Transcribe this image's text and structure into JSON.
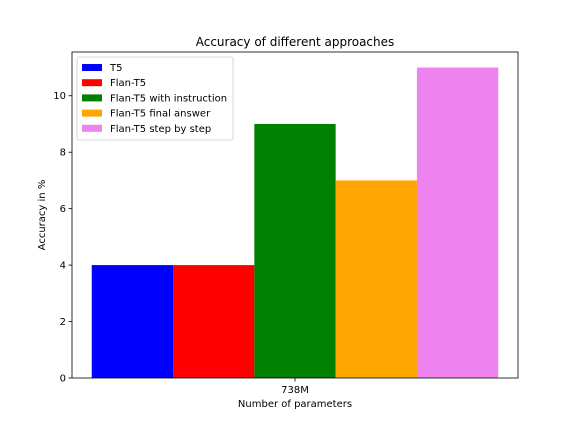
{
  "chart_data": {
    "type": "bar",
    "title": "Accuracy of different approaches",
    "xlabel": "Number of parameters",
    "ylabel": "Accuracy in %",
    "categories": [
      "738M"
    ],
    "ylim": [
      0,
      11.55
    ],
    "yticks": [
      0,
      2,
      4,
      6,
      8,
      10
    ],
    "legend_position": "top-left",
    "grid": false,
    "series": [
      {
        "name": "T5",
        "values": [
          4
        ],
        "color": "#0000ff"
      },
      {
        "name": "Flan-T5",
        "values": [
          4
        ],
        "color": "#ff0000"
      },
      {
        "name": "Flan-T5 with instruction",
        "values": [
          9
        ],
        "color": "#008000"
      },
      {
        "name": "Flan-T5 final answer",
        "values": [
          7
        ],
        "color": "#ffa500"
      },
      {
        "name": "Flan-T5 step by step",
        "values": [
          11
        ],
        "color": "#ee82ee"
      }
    ]
  }
}
